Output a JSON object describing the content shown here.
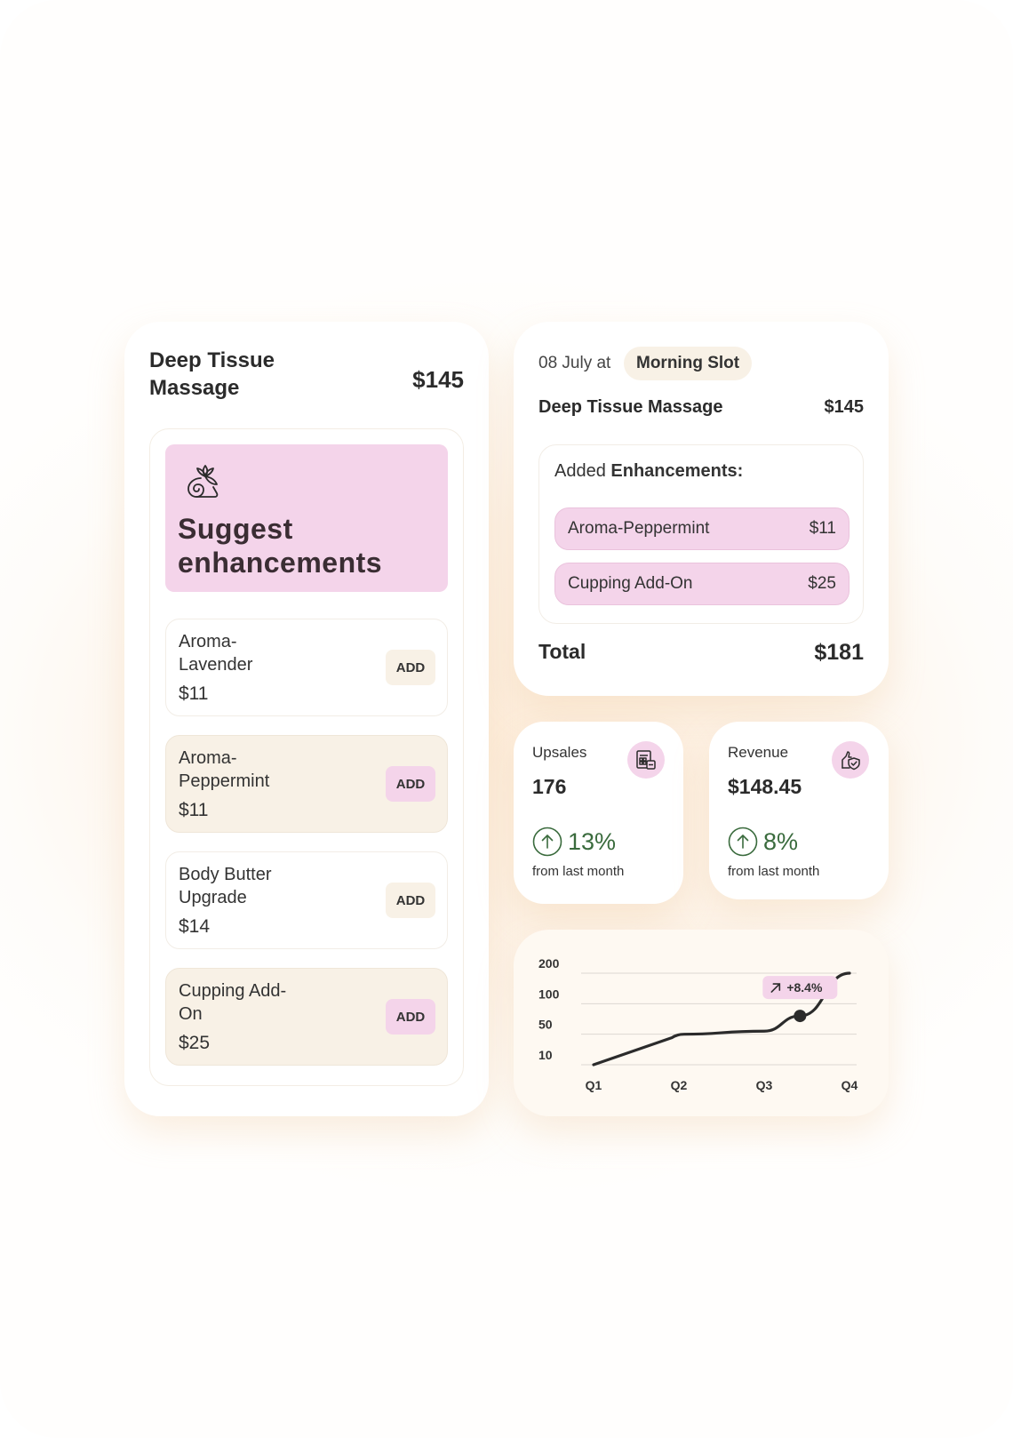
{
  "enhancement_card": {
    "title": "Deep Tissue Massage",
    "price": "$145",
    "suggest_heading": "Suggest enhancements",
    "suggest_icon": "lotus-flower-icon",
    "items": [
      {
        "name": "Aroma-Lavender",
        "price": "$11",
        "button": "ADD",
        "highlighted": false
      },
      {
        "name": "Aroma-Peppermint",
        "price": "$11",
        "button": "ADD",
        "highlighted": true
      },
      {
        "name": "Body Butter Upgrade",
        "price": "$14",
        "button": "ADD",
        "highlighted": false
      },
      {
        "name": "Cupping Add-On",
        "price": "$25",
        "button": "ADD",
        "highlighted": true
      }
    ]
  },
  "booking": {
    "date": "08 July at",
    "slot": "Morning Slot",
    "service": "Deep Tissue Massage",
    "service_price": "$145",
    "added_prefix": "Added ",
    "added_bold": "Enhancements:",
    "added": [
      {
        "name": "Aroma-Peppermint",
        "price": "$11"
      },
      {
        "name": "Cupping Add-On",
        "price": "$25"
      }
    ],
    "total_label": "Total",
    "total_value": "$181"
  },
  "stats": {
    "upsales": {
      "label": "Upsales",
      "value": "176",
      "growth": "13%",
      "sub": "from last month",
      "icon": "receipt-icon"
    },
    "revenue": {
      "label": "Revenue",
      "value": "$148.45",
      "growth": "8%",
      "sub": "from last month",
      "icon": "hand-shield-icon"
    }
  },
  "colors": {
    "accent_pink": "#f4d4ea",
    "cream": "#f8f1e6",
    "growth_green": "#3a6b3d",
    "line": "#2b2b2b"
  },
  "chart_data": {
    "type": "line",
    "categories": [
      "Q1",
      "Q2",
      "Q3",
      "Q4"
    ],
    "y_ticks": [
      "200",
      "100",
      "50",
      "10"
    ],
    "series": [
      {
        "x": [
          1,
          2,
          3,
          3.42,
          4
        ],
        "y": [
          10,
          50,
          55,
          80,
          200
        ]
      }
    ],
    "highlight_point": {
      "x": 3.42,
      "y": 80
    },
    "badge": "+8.4%",
    "grid": true
  }
}
